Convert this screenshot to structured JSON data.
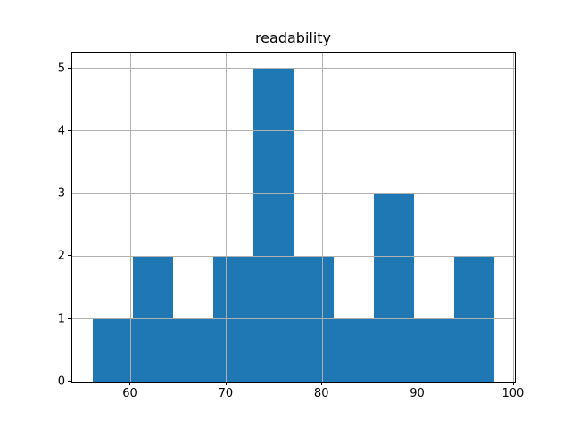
{
  "chart_data": {
    "type": "bar",
    "subtype": "histogram",
    "title": "readability",
    "bin_edges": [
      56.0,
      60.2,
      64.4,
      68.6,
      72.8,
      77.0,
      81.2,
      85.4,
      89.6,
      93.8,
      98.0
    ],
    "counts": [
      1,
      2,
      1,
      2,
      5,
      2,
      1,
      3,
      1,
      2
    ],
    "xticks": [
      60,
      70,
      80,
      90,
      100
    ],
    "xtick_labels": [
      "60",
      "70",
      "80",
      "90",
      "100"
    ],
    "yticks": [
      0,
      1,
      2,
      3,
      4,
      5
    ],
    "ytick_labels": [
      "0",
      "1",
      "2",
      "3",
      "4",
      "5"
    ],
    "xlim": [
      53.9,
      100.1
    ],
    "ylim": [
      0,
      5.25
    ],
    "xlabel": "",
    "ylabel": "",
    "grid": true,
    "legend": null,
    "bar_color": "#1f77b4",
    "grid_color": "#b0b0b0",
    "spine_color": "#000000",
    "text_color": "#000000",
    "background_color": "#ffffff"
  }
}
